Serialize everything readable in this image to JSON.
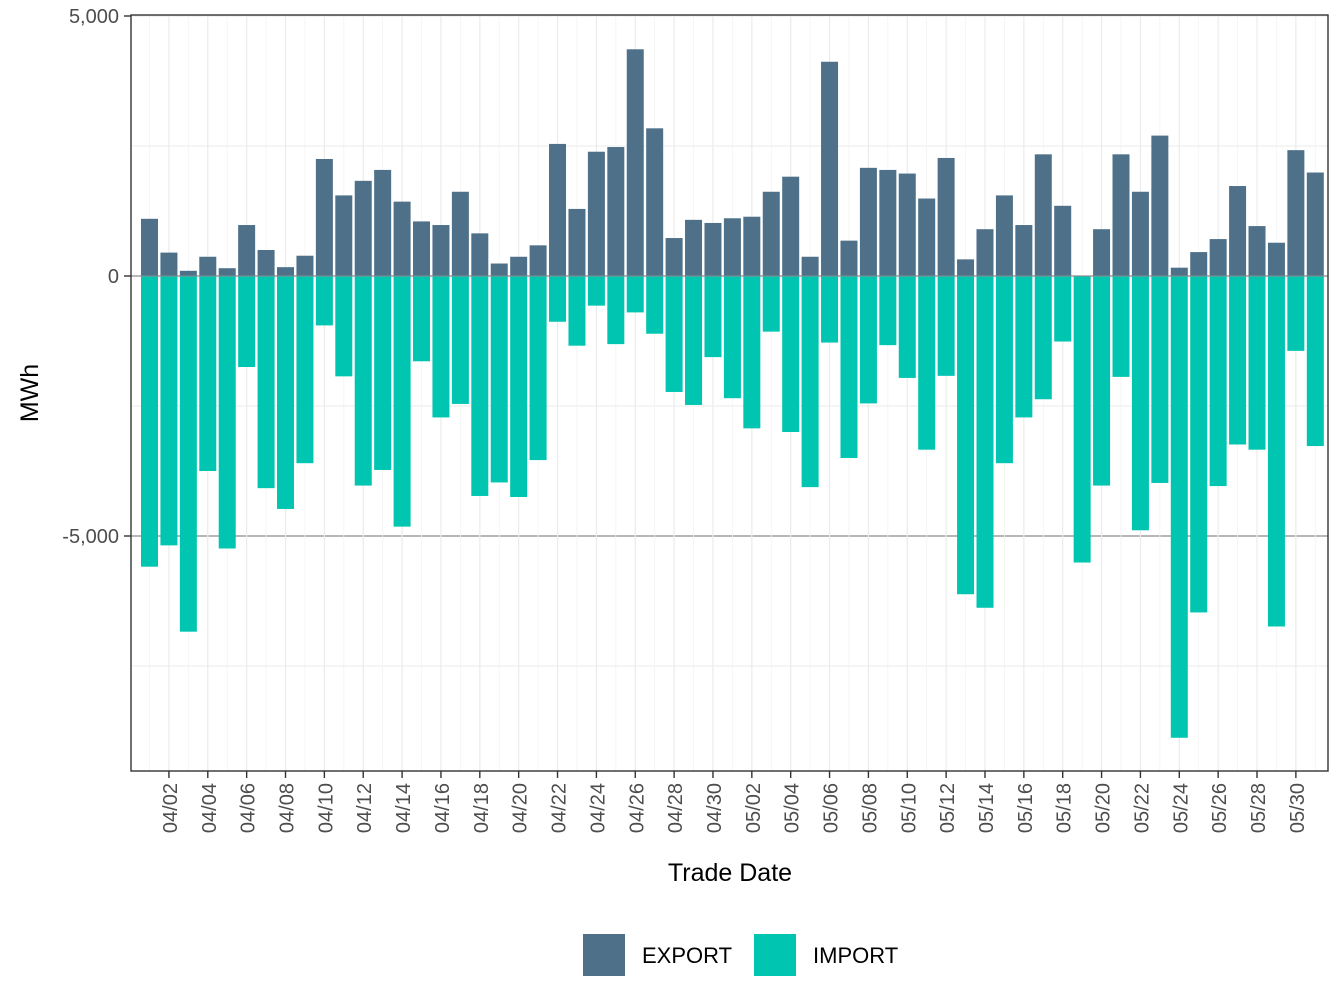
{
  "chart_data": {
    "type": "bar",
    "stacked": "diverging",
    "xlabel": "Trade Date",
    "ylabel": "MWh",
    "ylim": [
      -9500,
      5000
    ],
    "yticks": [
      {
        "value": 5000,
        "label": "5,000"
      },
      {
        "value": 0,
        "label": "0"
      },
      {
        "value": -5000,
        "label": "-5,000"
      }
    ],
    "ygrid_minor": [
      2500,
      -2500,
      -7500
    ],
    "categories": [
      "04/01",
      "04/02",
      "04/03",
      "04/04",
      "04/05",
      "04/06",
      "04/07",
      "04/08",
      "04/09",
      "04/10",
      "04/11",
      "04/12",
      "04/13",
      "04/14",
      "04/15",
      "04/16",
      "04/17",
      "04/18",
      "04/19",
      "04/20",
      "04/21",
      "04/22",
      "04/23",
      "04/24",
      "04/25",
      "04/26",
      "04/27",
      "04/28",
      "04/29",
      "04/30",
      "05/01",
      "05/02",
      "05/03",
      "05/04",
      "05/05",
      "05/06",
      "05/07",
      "05/08",
      "05/09",
      "05/10",
      "05/11",
      "05/12",
      "05/13",
      "05/14",
      "05/15",
      "05/16",
      "05/17",
      "05/18",
      "05/19",
      "05/20",
      "05/21",
      "05/22",
      "05/23",
      "05/24",
      "05/25",
      "05/26",
      "05/27",
      "05/28",
      "05/29",
      "05/30",
      "05/31"
    ],
    "xtick_labels": [
      "04/02",
      "04/04",
      "04/06",
      "04/08",
      "04/10",
      "04/12",
      "04/14",
      "04/16",
      "04/18",
      "04/20",
      "04/22",
      "04/24",
      "04/26",
      "04/28",
      "04/30",
      "05/02",
      "05/04",
      "05/06",
      "05/08",
      "05/10",
      "05/12",
      "05/14",
      "05/16",
      "05/18",
      "05/20",
      "05/22",
      "05/24",
      "05/26",
      "05/28",
      "05/30"
    ],
    "series": [
      {
        "name": "EXPORT",
        "color": "#4e7189",
        "values": [
          1100,
          450,
          100,
          370,
          150,
          980,
          500,
          170,
          390,
          2250,
          1550,
          1830,
          2040,
          1430,
          1050,
          980,
          1620,
          820,
          240,
          370,
          590,
          2540,
          1290,
          2390,
          2480,
          4360,
          2840,
          730,
          1080,
          1020,
          1110,
          1140,
          1620,
          1910,
          370,
          4120,
          680,
          2080,
          2040,
          1970,
          1490,
          2270,
          320,
          900,
          1550,
          980,
          2340,
          1350,
          0,
          900,
          2340,
          1620,
          2700,
          160,
          460,
          710,
          1730,
          960,
          640,
          2420,
          1990
        ]
      },
      {
        "name": "IMPORT",
        "color": "#00c5b1",
        "values": [
          -5590,
          -5180,
          -6840,
          -3750,
          -5240,
          -1750,
          -4080,
          -4480,
          -3600,
          -950,
          -1930,
          -4030,
          -3730,
          -4820,
          -1640,
          -2720,
          -2460,
          -4230,
          -3970,
          -4250,
          -3540,
          -880,
          -1340,
          -570,
          -1310,
          -700,
          -1110,
          -2230,
          -2480,
          -1560,
          -2350,
          -2930,
          -1070,
          -3000,
          -4060,
          -1280,
          -3500,
          -2450,
          -1330,
          -1960,
          -3340,
          -1920,
          -6120,
          -6380,
          -3600,
          -2720,
          -2370,
          -1260,
          -5510,
          -4030,
          -1940,
          -4890,
          -3980,
          -8880,
          -6470,
          -4040,
          -3240,
          -3340,
          -6740,
          -1440,
          -3270
        ]
      }
    ],
    "legend": [
      "EXPORT",
      "IMPORT"
    ],
    "legend_position": "bottom",
    "grid": true
  }
}
